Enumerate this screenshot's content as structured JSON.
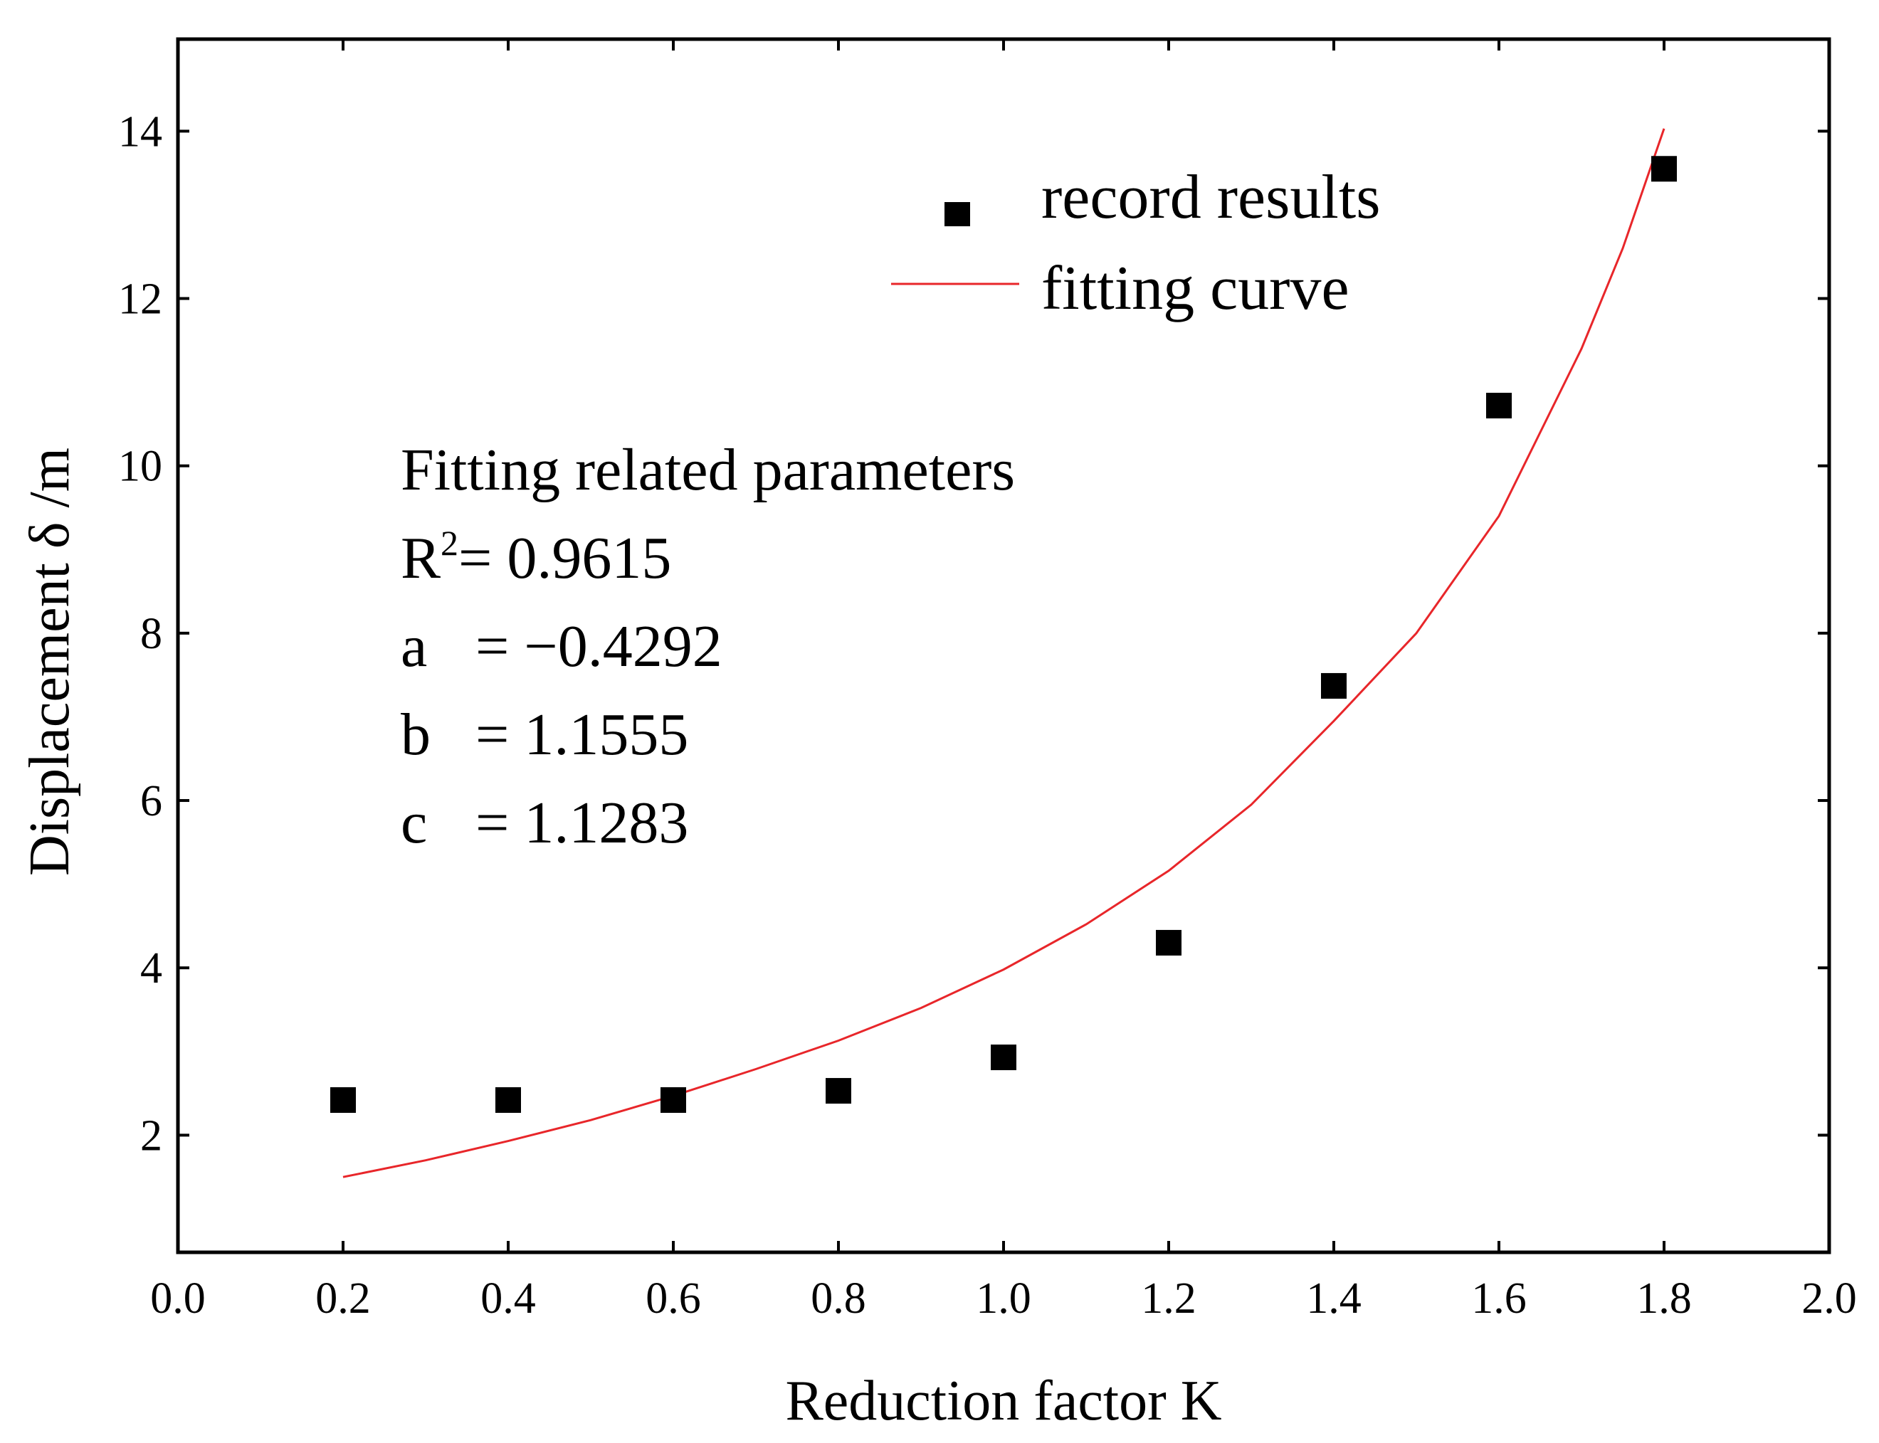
{
  "chart_data": {
    "type": "scatter",
    "xlabel": "Reduction factor K",
    "ylabel": "Displacement δ /m",
    "xlim": [
      0.0,
      2.0
    ],
    "ylim": [
      0.6,
      15.1
    ],
    "xticks": [
      0.0,
      0.2,
      0.4,
      0.6,
      0.8,
      1.0,
      1.2,
      1.4,
      1.6,
      1.8,
      2.0
    ],
    "xtick_labels": [
      "0.0",
      "0.2",
      "0.4",
      "0.6",
      "0.8",
      "1.0",
      "1.2",
      "1.4",
      "1.6",
      "1.8",
      "2.0"
    ],
    "yticks": [
      2,
      4,
      6,
      8,
      10,
      12,
      14
    ],
    "ytick_labels": [
      "2",
      "4",
      "6",
      "8",
      "10",
      "12",
      "14"
    ],
    "series": [
      {
        "name": "record results",
        "kind": "scatter",
        "marker": "square",
        "color": "#000000",
        "x": [
          0.2,
          0.4,
          0.6,
          0.8,
          1.0,
          1.2,
          1.4,
          1.6,
          1.8
        ],
        "y": [
          2.42,
          2.42,
          2.42,
          2.53,
          2.93,
          4.3,
          7.37,
          10.72,
          13.55
        ]
      },
      {
        "name": "fitting curve",
        "kind": "line",
        "color": "#e8262a",
        "x": [
          0.2,
          0.3,
          0.4,
          0.5,
          0.6,
          0.7,
          0.8,
          0.9,
          1.0,
          1.1,
          1.2,
          1.3,
          1.4,
          1.5,
          1.6,
          1.7,
          1.75,
          1.8
        ],
        "y": [
          1.5,
          1.7,
          1.93,
          2.18,
          2.47,
          2.79,
          3.13,
          3.52,
          3.98,
          4.52,
          5.16,
          5.95,
          6.95,
          8.0,
          9.4,
          11.4,
          12.6,
          14.03
        ]
      }
    ],
    "legend": {
      "position": "top-right",
      "entries": [
        "record results",
        "fitting curve"
      ]
    },
    "annotation": {
      "title": "Fitting related parameters",
      "r2_base": "R",
      "r2_exp": "2",
      "r2_value": "= 0.9615",
      "a_name": "a",
      "a_value": "= −0.4292",
      "b_name": "b",
      "b_value": "= 1.1555",
      "c_name": "c",
      "c_value": "= 1.1283"
    }
  }
}
